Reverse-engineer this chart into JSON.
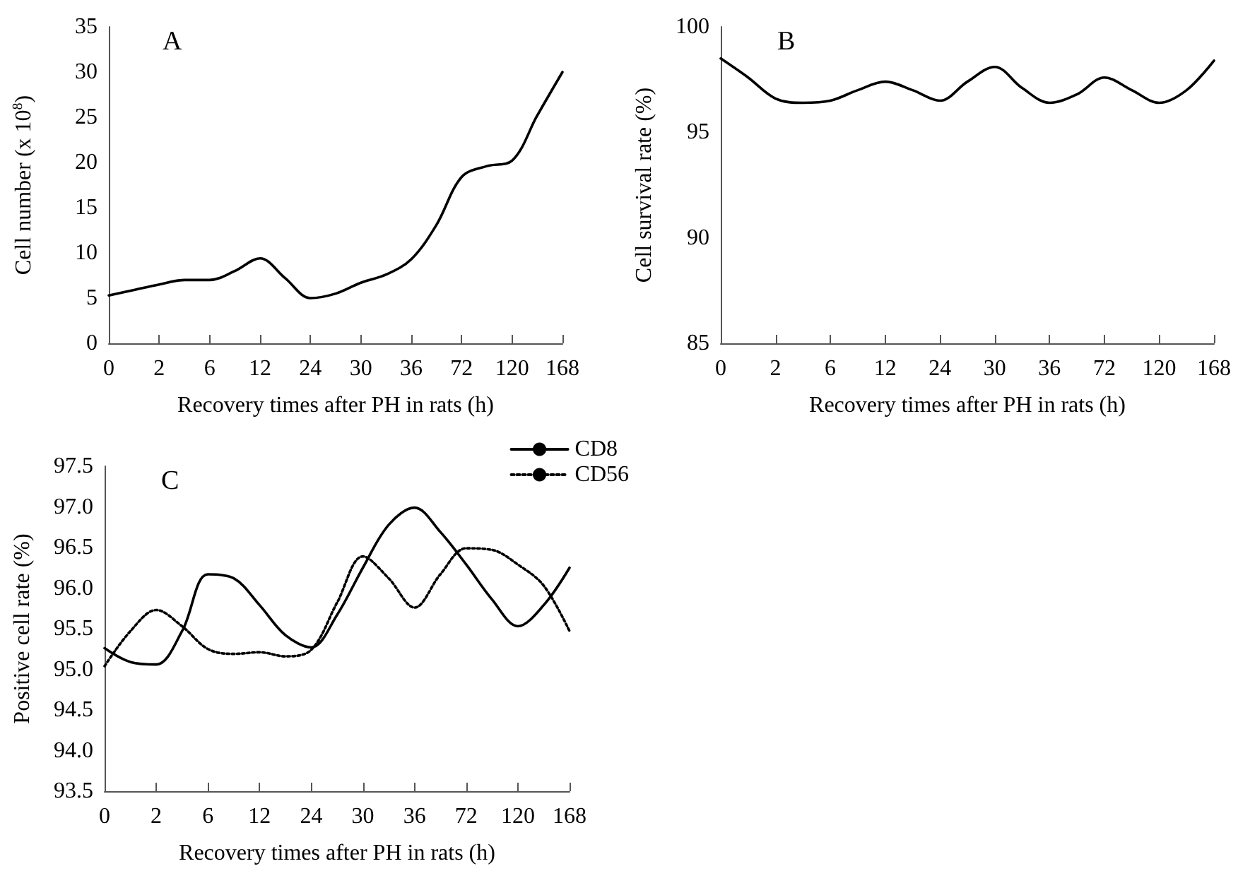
{
  "chart_data": [
    {
      "type": "line",
      "title": "A",
      "xlabel": "Recovery times after PH in rats (h)",
      "ylabel": "Cell number (x 10$^{8}$)",
      "categories": [
        "0",
        null,
        "2",
        null,
        "6",
        null,
        "12",
        null,
        "24",
        null,
        "30",
        null,
        "36",
        null,
        "72",
        null,
        "120",
        null,
        "168"
      ],
      "series": [
        {
          "color": "#000000",
          "line_style": "solid",
          "values": [
            5.3,
            5.9,
            6.5,
            7.0,
            7.0,
            8.0,
            9.4,
            7.2,
            5.0,
            5.5,
            6.7,
            7.6,
            9.3,
            13.1,
            18.4,
            19.6,
            20.2,
            25.2,
            30.0
          ]
        }
      ],
      "ylim": [
        0,
        35
      ],
      "yticks": [
        0,
        5,
        10,
        15,
        20,
        25,
        30,
        35
      ],
      "grid": false,
      "legend": false,
      "marker": "none"
    },
    {
      "type": "line",
      "title": "B",
      "xlabel": "Recovery times after PH in rats (h)",
      "ylabel": "Cell survival rate (%)",
      "categories": [
        "0",
        null,
        "2",
        null,
        "6",
        null,
        "12",
        null,
        "24",
        null,
        "30",
        null,
        "36",
        null,
        "72",
        null,
        "120",
        null,
        "168"
      ],
      "series": [
        {
          "color": "#000000",
          "line_style": "solid",
          "values": [
            98.5,
            97.6,
            96.6,
            96.4,
            96.5,
            97.0,
            97.4,
            97.0,
            96.5,
            97.4,
            98.1,
            97.1,
            96.4,
            96.8,
            97.6,
            97.0,
            96.4,
            97.0,
            98.4
          ]
        }
      ],
      "ylim": [
        85,
        100
      ],
      "yticks": [
        85,
        90,
        95,
        100
      ],
      "grid": false,
      "legend": false,
      "marker": "none"
    },
    {
      "type": "line",
      "title": "C",
      "xlabel": "Recovery times after PH in rats (h)",
      "ylabel": "Positive cell rate (%)",
      "categories": [
        "0",
        null,
        "2",
        null,
        "6",
        null,
        "12",
        null,
        "24",
        null,
        "30",
        null,
        "36",
        null,
        "72",
        null,
        "120",
        null,
        "168"
      ],
      "series": [
        {
          "name": "CD8",
          "color": "#000000",
          "line_style": "solid",
          "values": [
            95.26,
            95.09,
            95.06,
            95.47,
            96.17,
            96.12,
            95.79,
            95.42,
            95.27,
            95.67,
            96.25,
            96.78,
            96.99,
            96.69,
            96.29,
            95.86,
            95.53,
            95.79,
            96.25
          ]
        },
        {
          "name": "CD56",
          "color": "#000000",
          "line_style": "dotted",
          "values": [
            95.04,
            95.47,
            95.73,
            95.53,
            95.25,
            95.19,
            95.21,
            95.16,
            95.24,
            95.82,
            96.39,
            96.12,
            95.76,
            96.17,
            96.49,
            96.47,
            96.29,
            96.03,
            95.47
          ]
        }
      ],
      "ylim": [
        93.5,
        97.5
      ],
      "yticks": [
        "93.5",
        {
          "value": 94,
          "label": "94.0"
        },
        "94.5",
        {
          "value": 95,
          "label": "95.0"
        },
        "95.5",
        {
          "value": 96,
          "label": "96.0"
        },
        "96.5",
        {
          "value": 97,
          "label": "97.0"
        },
        "97.5"
      ],
      "grid": false,
      "legend": "top right",
      "marker": "none"
    }
  ]
}
